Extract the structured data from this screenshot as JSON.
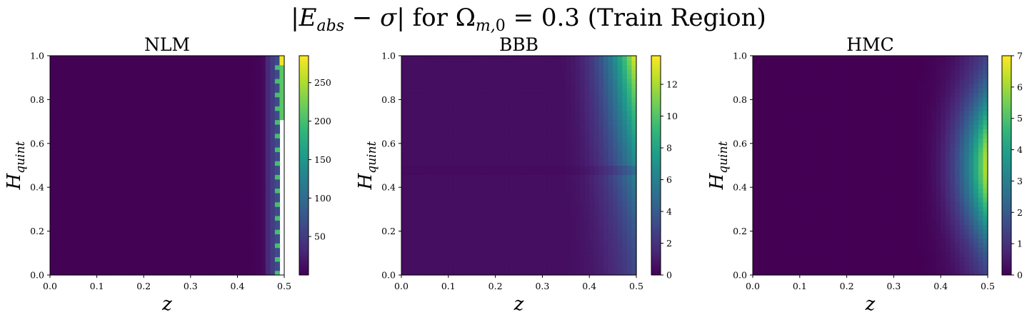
{
  "figure": {
    "suptitle": "|E_abs − σ| for Ω_m,0 = 0.3 (Train Region)"
  },
  "colormap": [
    "#440154",
    "#482878",
    "#3e4989",
    "#31688e",
    "#26828e",
    "#1f9e89",
    "#35b779",
    "#6ece58",
    "#b5de2b",
    "#fde725"
  ],
  "chart_data": [
    {
      "type": "heatmap",
      "title": "NLM",
      "xlabel": "z",
      "ylabel": "H_quint",
      "xlim": [
        0.0,
        0.5
      ],
      "ylim": [
        0.0,
        1.0
      ],
      "xticks": [
        "0.0",
        "0.1",
        "0.2",
        "0.3",
        "0.4",
        "0.5"
      ],
      "yticks": [
        "0.0",
        "0.2",
        "0.4",
        "0.6",
        "0.8",
        "1.0"
      ],
      "colorbar": {
        "range": [
          0,
          285
        ],
        "ticks": [
          "50",
          "100",
          "150",
          "200",
          "250"
        ],
        "tick_values": [
          50,
          100,
          150,
          200,
          250
        ]
      },
      "description": "near-zero everywhere; rises sharply only at z > 0.47; narrow strip of very large values (~150-280) at right edge, with missing (white) cells near z = 0.5"
    },
    {
      "type": "heatmap",
      "title": "BBB",
      "xlabel": "z",
      "ylabel": "H_quint",
      "xlim": [
        0.0,
        0.5
      ],
      "ylim": [
        0.0,
        1.0
      ],
      "xticks": [
        "0.0",
        "0.1",
        "0.2",
        "0.3",
        "0.4",
        "0.5"
      ],
      "yticks": [
        "0.0",
        "0.2",
        "0.4",
        "0.6",
        "0.8",
        "1.0"
      ],
      "colorbar": {
        "range": [
          0,
          13.8
        ],
        "ticks": [
          "0",
          "2",
          "4",
          "6",
          "8",
          "10",
          "12"
        ],
        "tick_values": [
          0,
          2,
          4,
          6,
          8,
          10,
          12
        ]
      },
      "description": "near-zero for z < 0.35; increases toward z = 0.5 and toward H_quint = 1.0; maximum ~13.8 at top-right corner"
    },
    {
      "type": "heatmap",
      "title": "HMC",
      "xlabel": "z",
      "ylabel": "H_quint",
      "xlim": [
        0.0,
        0.5
      ],
      "ylim": [
        0.0,
        1.0
      ],
      "xticks": [
        "0.0",
        "0.1",
        "0.2",
        "0.3",
        "0.4",
        "0.5"
      ],
      "yticks": [
        "0.0",
        "0.2",
        "0.4",
        "0.6",
        "0.8",
        "1.0"
      ],
      "colorbar": {
        "range": [
          0,
          7
        ],
        "ticks": [
          "0",
          "1",
          "2",
          "3",
          "4",
          "5",
          "6",
          "7"
        ],
        "tick_values": [
          0,
          1,
          2,
          3,
          4,
          5,
          6,
          7
        ]
      },
      "description": "near-zero for z < 0.35; crescent-shaped band of higher error along z ≈ 0.45-0.5, peaking ~6.5 around H_quint ≈ 0.4-0.6"
    }
  ]
}
